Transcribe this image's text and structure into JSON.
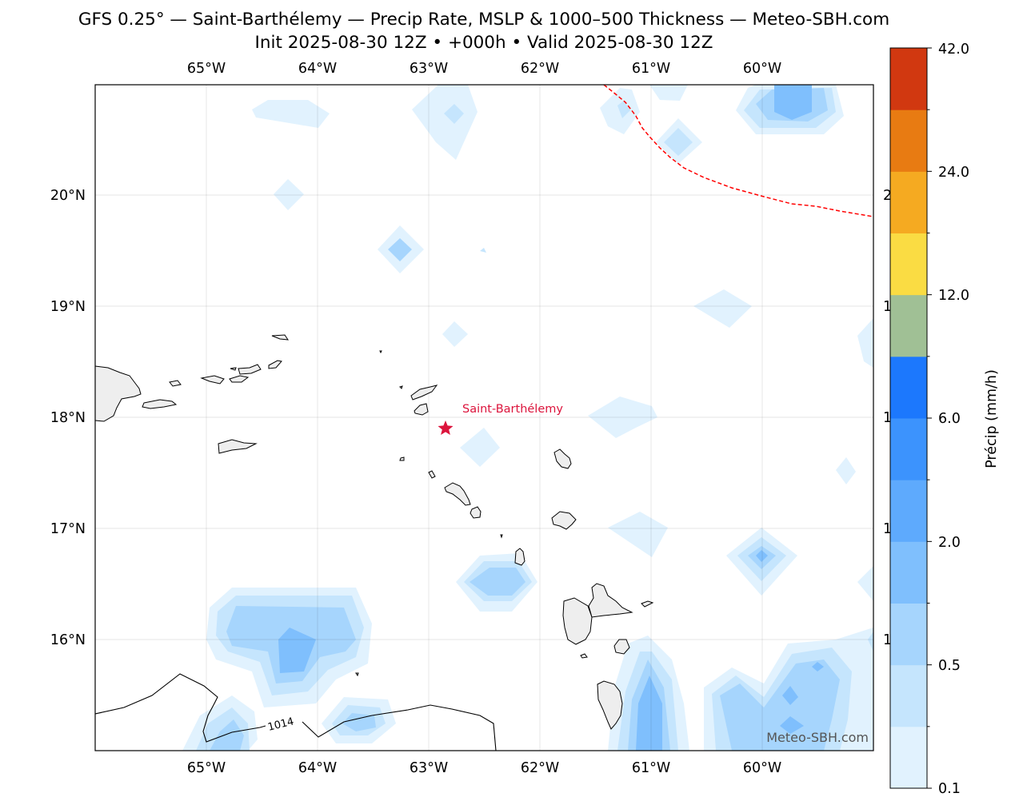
{
  "header": {
    "title_line1": "GFS 0.25° — Saint-Barthélemy — Precip Rate, MSLP & 1000–500 Thickness — Meteo-SBH.com",
    "title_line2": "Init 2025-08-30 12Z • +000h • Valid 2025-08-30 12Z"
  },
  "map": {
    "lon_labels": [
      "65°W",
      "64°W",
      "63°W",
      "62°W",
      "61°W",
      "60°W"
    ],
    "lat_labels": [
      "20°N",
      "19°N",
      "18°N",
      "17°N",
      "16°N"
    ],
    "place_label": "Saint-Barthélemy",
    "isobar_label": "1014",
    "watermark": "Meteo-SBH.com",
    "colors": {
      "place_marker": "#dc143c",
      "thickness_line": "#ff0000",
      "land": "#eeeeee"
    }
  },
  "colorbar": {
    "label": "Précip (mm/h)",
    "tick_labels": [
      "0.1",
      "0.5",
      "2.0",
      "6.0",
      "12.0",
      "24.0",
      "42.0"
    ],
    "colors": [
      "#e1f2fe",
      "#c5e5fd",
      "#a6d5fd",
      "#7fbffd",
      "#5eaafd",
      "#3c93fd",
      "#1c78fd",
      "#a0c095",
      "#fadc43",
      "#f5aa21",
      "#e87b12",
      "#d13810"
    ]
  }
}
